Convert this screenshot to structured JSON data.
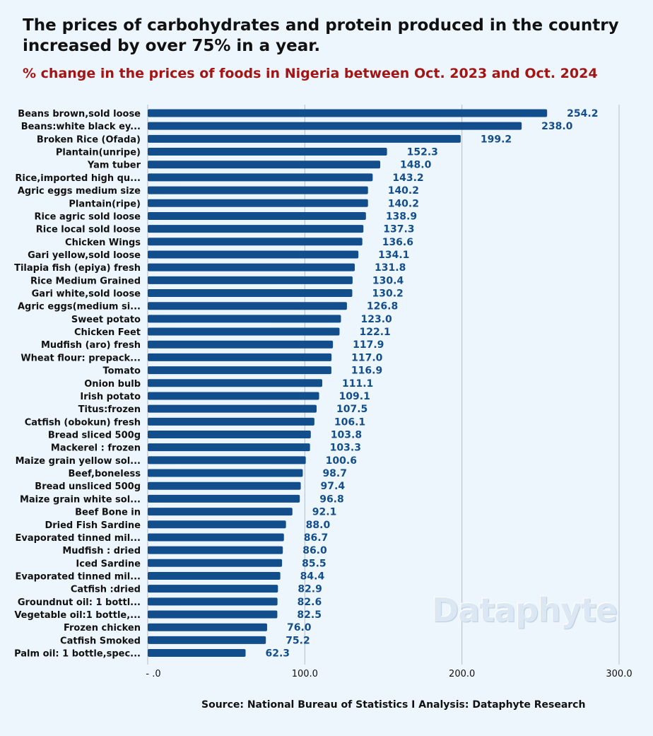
{
  "title": "The prices of carbohydrates and protein produced in the country increased by over 75% in a year.",
  "subtitle": "% change in the prices of foods in Nigeria between Oct. 2023 and Oct. 2024",
  "source": "Source: National Bureau of Statistics I Analysis: Dataphyte Research",
  "watermark": "Dataphyte",
  "colors": {
    "bar": "#134e8c",
    "value_label": "#134e8c",
    "subtitle": "#a31515",
    "grid": "#b5bcc4"
  },
  "chart_data": {
    "type": "bar",
    "orientation": "horizontal",
    "categories": [
      "Beans brown,sold loose",
      "Beans:white black ey...",
      "Broken Rice (Ofada)",
      "Plantain(unripe)",
      "Yam tuber",
      "Rice,imported high qu...",
      "Agric eggs medium size",
      "Plantain(ripe)",
      "Rice agric sold loose",
      "Rice local sold loose",
      "Chicken Wings",
      "Gari yellow,sold loose",
      "Tilapia fish (epiya) fresh",
      "Rice Medium Grained",
      "Gari white,sold loose",
      "Agric eggs(medium si...",
      "Sweet potato",
      "Chicken Feet",
      "Mudfish (aro) fresh",
      "Wheat flour: prepack...",
      "Tomato",
      "Onion bulb",
      "Irish potato",
      "Titus:frozen",
      "Catfish (obokun) fresh",
      "Bread sliced 500g",
      "Mackerel : frozen",
      "Maize grain yellow sol...",
      "Beef,boneless",
      "Bread unsliced 500g",
      "Maize grain white sol...",
      "Beef Bone in",
      "Dried Fish Sardine",
      "Evaporated tinned mil...",
      "Mudfish : dried",
      "Iced Sardine",
      "Evaporated tinned mil...",
      "Catfish :dried",
      "Groundnut oil: 1 bottl...",
      "Vegetable oil:1 bottle,...",
      "Frozen chicken",
      "Catfish Smoked",
      "Palm oil: 1 bottle,spec..."
    ],
    "values": [
      254.2,
      238.0,
      199.2,
      152.3,
      148.0,
      143.2,
      140.2,
      140.2,
      138.9,
      137.3,
      136.6,
      134.1,
      131.8,
      130.4,
      130.2,
      126.8,
      123.0,
      122.1,
      117.9,
      117.0,
      116.9,
      111.1,
      109.1,
      107.5,
      106.1,
      103.8,
      103.3,
      100.6,
      98.7,
      97.4,
      96.8,
      92.1,
      88.0,
      86.7,
      86.0,
      85.5,
      84.4,
      82.9,
      82.6,
      82.5,
      76.0,
      75.2,
      62.3
    ],
    "value_labels": [
      "254.2",
      "238.0",
      "199.2",
      "152.3",
      "148.0",
      "143.2",
      "140.2",
      "140.2",
      "138.9",
      "137.3",
      "136.6",
      "134.1",
      "131.8",
      "130.4",
      "130.2",
      "126.8",
      "123.0",
      "122.1",
      "117.9",
      "117.0",
      "116.9",
      "111.1",
      "109.1",
      "107.5",
      "106.1",
      "103.8",
      "103.3",
      "100.6",
      "98.7",
      "97.4",
      "96.8",
      "92.1",
      "88.0",
      "86.7",
      "86.0",
      "85.5",
      "84.4",
      "82.9",
      "82.6",
      "82.5",
      "76.0",
      "75.2",
      "62.3"
    ],
    "xlim": [
      0,
      300
    ],
    "xticks": [
      0,
      100,
      200,
      300
    ],
    "xtick_labels": [
      "- .0",
      "100.0",
      "200.0",
      "300.0"
    ],
    "grid": "vertical",
    "xlabel": "",
    "ylabel": ""
  }
}
